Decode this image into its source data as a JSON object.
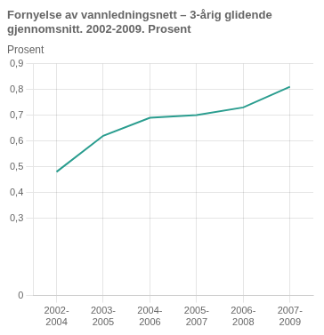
{
  "chart_data": {
    "type": "line",
    "title": "Fornyelse av vannledningsnett – 3-årig glidende\ngjennomsnitt. 2002-2009. Prosent",
    "ylabel": "Prosent",
    "categories": [
      "2002-\n2004",
      "2003-\n2005",
      "2004-\n2006",
      "2005-\n2007",
      "2006-\n2008",
      "2007-\n2009"
    ],
    "values": [
      0.48,
      0.62,
      0.69,
      0.7,
      0.73,
      0.81
    ],
    "color": "#2a9d8f",
    "ylim": [
      0,
      0.9
    ],
    "yticks": [
      0,
      {
        "value": 0.3,
        "label": "0,3"
      },
      {
        "value": 0.4,
        "label": "0,4"
      },
      {
        "value": 0.5,
        "label": "0,5"
      },
      {
        "value": 0.6,
        "label": "0,6"
      },
      {
        "value": 0.7,
        "label": "0,7"
      },
      {
        "value": 0.8,
        "label": "0,8"
      },
      {
        "value": 0.9,
        "label": "0,9"
      }
    ],
    "grid": true
  }
}
